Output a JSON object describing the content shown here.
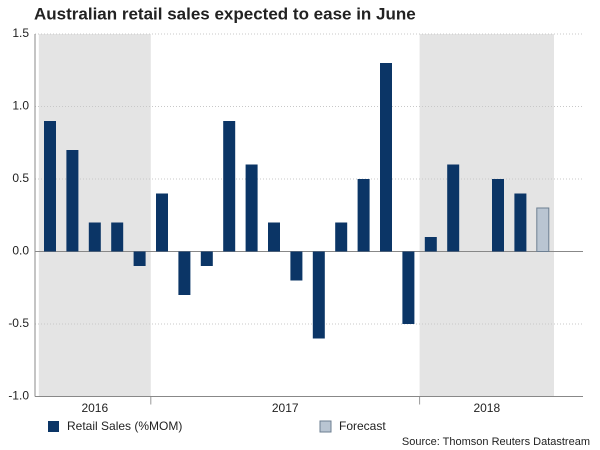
{
  "chart_data": {
    "type": "bar",
    "title": "Australian retail sales expected to ease in June",
    "categories": [
      null,
      null,
      null,
      null,
      null,
      null,
      null,
      null,
      null,
      null,
      null,
      null,
      null,
      null,
      null,
      null,
      null,
      null,
      null,
      null,
      null,
      null,
      null
    ],
    "groups": [
      {
        "label": "2016",
        "start": 0,
        "end": 5,
        "shaded": true
      },
      {
        "label": "2017",
        "start": 5,
        "end": 17,
        "shaded": false
      },
      {
        "label": "2018",
        "start": 17,
        "end": 23,
        "shaded": true
      }
    ],
    "series": [
      {
        "name": "Retail Sales (%MOM)",
        "color": "#0b3566",
        "values": [
          0.9,
          0.7,
          0.2,
          0.2,
          -0.1,
          0.4,
          -0.3,
          -0.1,
          0.9,
          0.6,
          0.2,
          -0.2,
          -0.6,
          0.2,
          0.5,
          1.3,
          -0.5,
          0.1,
          0.6,
          0,
          0.5,
          0.4,
          null
        ]
      },
      {
        "name": "Forecast",
        "color": "#b9c5d2",
        "values": [
          null,
          null,
          null,
          null,
          null,
          null,
          null,
          null,
          null,
          null,
          null,
          null,
          null,
          null,
          null,
          null,
          null,
          null,
          null,
          null,
          null,
          null,
          0.3
        ]
      }
    ],
    "ylim": [
      -1.0,
      1.5
    ],
    "yticks": [
      {
        "value": -1.0,
        "label": "-1.0"
      },
      {
        "value": -0.5,
        "label": "-0.5"
      },
      {
        "value": 0,
        "label": "0.0"
      },
      {
        "value": 0.5,
        "label": "0.5"
      },
      {
        "value": 1.0,
        "label": "1.0"
      },
      {
        "value": 1.5,
        "label": "1.5"
      }
    ],
    "grid": true,
    "source": "Source: Thomson Reuters Datastream"
  }
}
